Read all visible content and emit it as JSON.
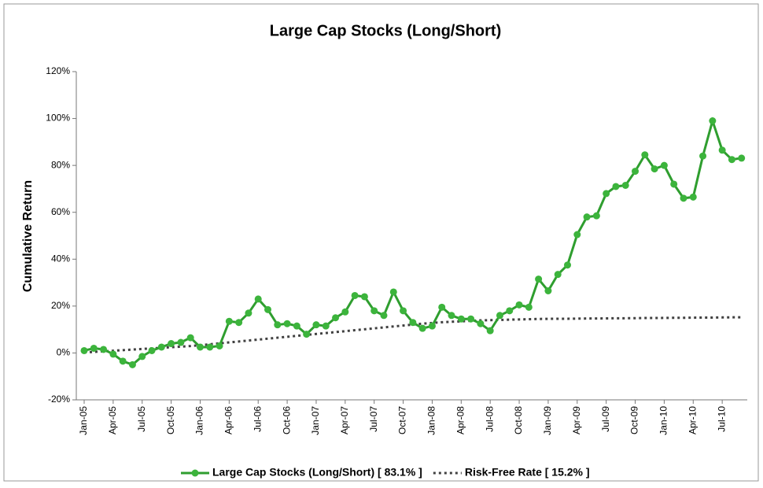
{
  "chart_data": {
    "type": "line",
    "title": "Large Cap Stocks (Long/Short)",
    "y_label": "Cumulative Return",
    "categories": [
      "Jan-05",
      null,
      null,
      "Apr-05",
      null,
      null,
      "Jul-05",
      null,
      null,
      "Oct-05",
      null,
      null,
      "Jan-06",
      null,
      null,
      "Apr-06",
      null,
      null,
      "Jul-06",
      null,
      null,
      "Oct-06",
      null,
      null,
      "Jan-07",
      null,
      null,
      "Apr-07",
      null,
      null,
      "Jul-07",
      null,
      null,
      "Oct-07",
      null,
      null,
      "Jan-08",
      null,
      null,
      "Apr-08",
      null,
      null,
      "Jul-08",
      null,
      null,
      "Oct-08",
      null,
      null,
      "Jan-09",
      null,
      null,
      "Apr-09",
      null,
      null,
      "Jul-09",
      null,
      null,
      "Oct-09",
      null,
      null,
      "Jan-10",
      null,
      null,
      "Apr-10",
      null,
      null,
      "Jul-10",
      null,
      null
    ],
    "series": [
      {
        "name": "Large Cap Stocks (Long/Short) [ 83.1% ]",
        "color": "#3cb43c",
        "line_color": "#2f9e2f",
        "marker": true,
        "values": [
          1,
          2,
          1.5,
          -0.5,
          -3.5,
          -5,
          -1.5,
          1,
          2.5,
          4,
          4.5,
          6.5,
          2.5,
          2.5,
          3,
          13.5,
          13,
          17,
          23,
          18.5,
          12,
          12.5,
          11.5,
          8,
          12,
          11.5,
          15,
          17.5,
          24.5,
          24,
          18,
          16,
          26,
          18,
          13,
          10.5,
          11.5,
          19.5,
          16,
          14.5,
          14.5,
          12.5,
          9.5,
          16,
          18,
          20.5,
          19.5,
          31.5,
          26.5,
          33.5,
          37.5,
          50.5,
          58,
          58.5,
          68,
          71,
          71.5,
          77.5,
          84.5,
          78.5,
          80,
          72,
          66,
          66.5,
          84,
          99,
          86.5,
          82.5,
          83.1
        ]
      },
      {
        "name": "Risk-Free Rate [ 15.2% ]",
        "color": "#404040",
        "dashed": true,
        "marker": false,
        "values": [
          0.2,
          0.45,
          0.7,
          0.95,
          1.2,
          1.45,
          1.7,
          1.95,
          2.2,
          2.45,
          2.7,
          2.95,
          3.3,
          3.7,
          4.1,
          4.5,
          4.9,
          5.3,
          5.7,
          6.1,
          6.5,
          6.9,
          7.3,
          7.7,
          8.1,
          8.5,
          8.9,
          9.3,
          9.7,
          10.1,
          10.5,
          10.9,
          11.3,
          11.7,
          12.1,
          12.5,
          12.8,
          13.1,
          13.3,
          13.5,
          13.7,
          13.9,
          14.0,
          14.1,
          14.2,
          14.3,
          14.4,
          14.5,
          14.55,
          14.6,
          14.6,
          14.65,
          14.7,
          14.7,
          14.75,
          14.8,
          14.8,
          14.85,
          14.9,
          14.9,
          14.95,
          15.0,
          15.0,
          15.05,
          15.1,
          15.1,
          15.15,
          15.2,
          15.2
        ]
      }
    ],
    "ylim": [
      -20,
      120
    ],
    "yticks": [
      {
        "value": -20,
        "label": "-20%"
      },
      {
        "value": 0,
        "label": "0%"
      },
      {
        "value": 20,
        "label": "20%"
      },
      {
        "value": 40,
        "label": "40%"
      },
      {
        "value": 60,
        "label": "60%"
      },
      {
        "value": 80,
        "label": "80%"
      },
      {
        "value": 100,
        "label": "100%"
      },
      {
        "value": 120,
        "label": "120%"
      }
    ],
    "grid": false,
    "legend": "bottom"
  }
}
